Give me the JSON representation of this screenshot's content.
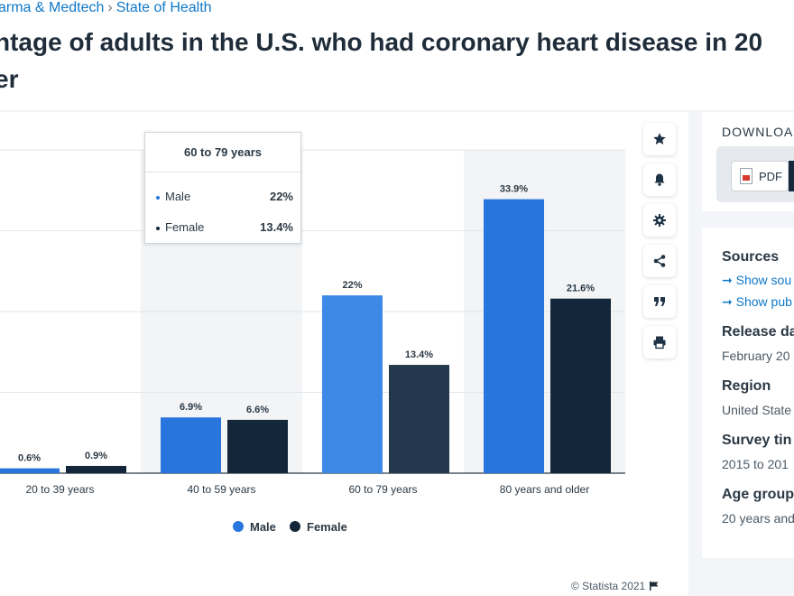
{
  "breadcrumb": {
    "item1": "arma & Medtech",
    "separator": "›",
    "item2": "State of Health"
  },
  "title": {
    "line1": "ntage of adults in the U.S. who had coronary heart disease in 20",
    "line2": "er"
  },
  "chart_data": {
    "type": "bar",
    "categories": [
      "20 to 39 years",
      "40 to 59 years",
      "60 to 79 years",
      "80 years and older"
    ],
    "series": [
      {
        "name": "Male",
        "values": [
          0.6,
          6.9,
          22,
          33.9
        ],
        "labels": [
          "0.6%",
          "6.9%",
          "22%",
          "33.9%"
        ],
        "color": "#2876dd"
      },
      {
        "name": "Female",
        "values": [
          0.9,
          6.6,
          13.4,
          21.6
        ],
        "labels": [
          "0.9%",
          "6.6%",
          "13.4%",
          "21.6%"
        ],
        "color": "#14263a"
      }
    ],
    "ylim": [
      0,
      40
    ],
    "grid": true,
    "legend": "bottom-center",
    "highlighted_category": "60 to 79 years"
  },
  "tooltip": {
    "title": "60 to 79 years",
    "rows": [
      {
        "label": "Male",
        "value": "22%",
        "color": "#2876dd"
      },
      {
        "label": "Female",
        "value": "13.4%",
        "color": "#14263a"
      }
    ]
  },
  "legend": {
    "male": "Male",
    "female": "Female"
  },
  "credit": "© Statista 2021",
  "toolbar": [
    "star-icon",
    "bell-icon",
    "gear-icon",
    "share-icon",
    "quote-icon",
    "print-icon"
  ],
  "download": {
    "title": "DOWNLOA",
    "pdf_label": "PDF"
  },
  "meta": {
    "sources_heading": "Sources",
    "show_sources": "Show sou",
    "show_publisher": "Show pub",
    "release_heading": "Release da",
    "release_value": "February 20",
    "region_heading": "Region",
    "region_value": "United State",
    "survey_heading": "Survey tin",
    "survey_value": "2015 to 201",
    "age_heading": "Age group",
    "age_value": "20 years and"
  }
}
